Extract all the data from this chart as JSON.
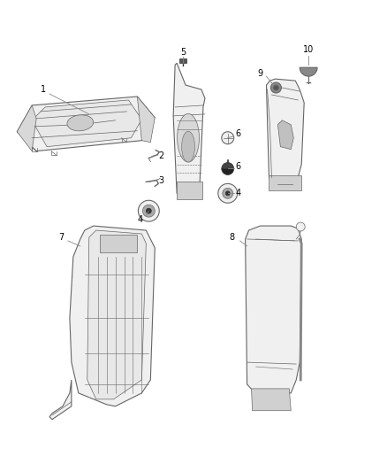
{
  "background_color": "#ffffff",
  "line_color": "#666666",
  "dark_line": "#333333",
  "label_color": "#000000",
  "fill_light": "#f0f0f0",
  "fill_mid": "#e0e0e0",
  "fill_dark": "#c8c8c8",
  "figsize": [
    4.38,
    5.33
  ],
  "dpi": 100,
  "label_fs": 7
}
